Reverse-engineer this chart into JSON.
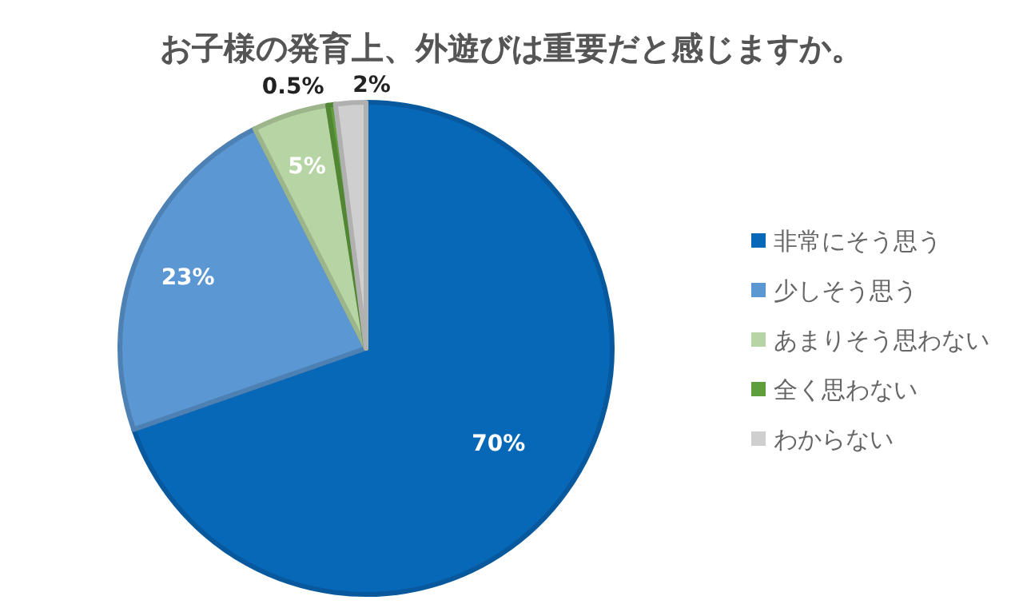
{
  "chart_data": {
    "type": "pie",
    "title": "お子様の発育上、外遊びは重要だと感じますか。",
    "categories": [
      "非常にそう思う",
      "少しそう思う",
      "あまりそう思わない",
      "全く思わない",
      "わからない"
    ],
    "values": [
      70,
      23,
      5,
      0.5,
      2
    ],
    "colors": [
      "#0868b8",
      "#5b97d2",
      "#b7d5a4",
      "#5f9e3c",
      "#cfcfcf"
    ],
    "value_labels": [
      "70%",
      "23%",
      "5%",
      "0.5%",
      "2%"
    ],
    "legend": "right"
  }
}
